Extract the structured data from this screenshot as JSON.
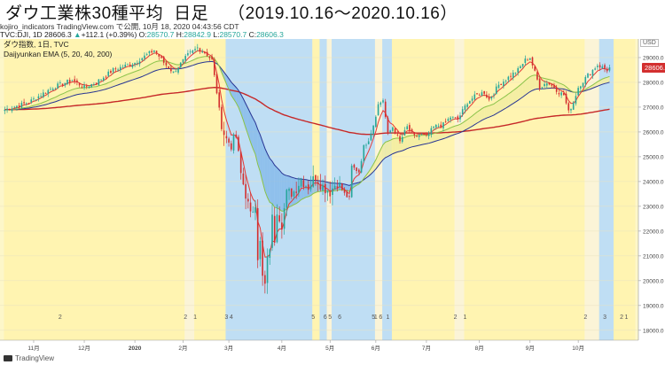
{
  "header": {
    "title": "ダウ工業株30種平均",
    "subtitle": "日足",
    "range": "（2019.10.16～2020.10.16）"
  },
  "meta": "kojiro_indicators TradingView.com で公開, 10月 18, 2020 04:43:56 CDT",
  "ohlc": {
    "prefix": "TVC:DJI, 1D 28606.3",
    "change": "+112.1 (+0.39%)",
    "o_label": "O:",
    "o": "28570.7",
    "h_label": "H:",
    "h": "28842.9",
    "l_label": "L:",
    "l": "28570.7",
    "c_label": "C:",
    "c": "28606.3"
  },
  "legend": {
    "line1": "ダウ指数, 1日, TVC",
    "line2": "Daijyunkan EMA (5, 20, 40, 200)"
  },
  "currency": "USD",
  "last_price": "28606.3",
  "footer": "TradingView",
  "colors": {
    "bull": "#26a69a",
    "bear": "#d32f2f",
    "ema5": "#e53935",
    "ema20": "#8bc34a",
    "ema40": "#283593",
    "ema200": "#c62828",
    "band_yellow": "#fff3b0",
    "band_blue": "#bcdcf7",
    "fill_yellow": "#f3eda2",
    "fill_blue": "#7fb6ea",
    "bg": "#fdf7c9"
  },
  "chart_data": {
    "type": "candlestick",
    "title": "ダウ工業株30種平均 日足 (2019.10.16～2020.10.16)",
    "y_axis": {
      "ticks": [
        18000,
        19000,
        20000,
        21000,
        22000,
        23000,
        24000,
        25000,
        26000,
        27000,
        28000,
        29000
      ],
      "ylim": [
        17600,
        29750
      ]
    },
    "x_labels": [
      "11月",
      "12月",
      "2020",
      "2月",
      "3月",
      "4月",
      "5月",
      "6月",
      "7月",
      "8月",
      "9月",
      "10月"
    ],
    "x_label_index": [
      12,
      33,
      54,
      74,
      93,
      115,
      135,
      154,
      175,
      197,
      218,
      238
    ],
    "n_days": 252,
    "close_anchors": [
      [
        0,
        26900
      ],
      [
        10,
        27200
      ],
      [
        20,
        27800
      ],
      [
        28,
        28100
      ],
      [
        33,
        27800
      ],
      [
        38,
        28000
      ],
      [
        45,
        28500
      ],
      [
        54,
        28800
      ],
      [
        62,
        29300
      ],
      [
        66,
        28800
      ],
      [
        70,
        28400
      ],
      [
        76,
        29100
      ],
      [
        80,
        29400
      ],
      [
        83,
        29200
      ],
      [
        86,
        28900
      ],
      [
        88,
        27600
      ],
      [
        90,
        26200
      ],
      [
        92,
        25700
      ],
      [
        94,
        25500
      ],
      [
        96,
        25800
      ],
      [
        98,
        24300
      ],
      [
        100,
        23500
      ],
      [
        102,
        22600
      ],
      [
        104,
        23200
      ],
      [
        105,
        21000
      ],
      [
        106,
        21500
      ],
      [
        107,
        20100
      ],
      [
        108,
        19800
      ],
      [
        109,
        20800
      ],
      [
        110,
        21400
      ],
      [
        111,
        22500
      ],
      [
        112,
        21700
      ],
      [
        113,
        22900
      ],
      [
        115,
        22300
      ],
      [
        117,
        23500
      ],
      [
        120,
        23600
      ],
      [
        123,
        24100
      ],
      [
        126,
        23800
      ],
      [
        129,
        24200
      ],
      [
        132,
        23800
      ],
      [
        135,
        23600
      ],
      [
        138,
        24000
      ],
      [
        141,
        23500
      ],
      [
        143,
        23300
      ],
      [
        144,
        24600
      ],
      [
        147,
        24400
      ],
      [
        149,
        25400
      ],
      [
        151,
        25700
      ],
      [
        153,
        26300
      ],
      [
        155,
        27100
      ],
      [
        157,
        27300
      ],
      [
        159,
        25900
      ],
      [
        161,
        26200
      ],
      [
        164,
        25600
      ],
      [
        167,
        26200
      ],
      [
        170,
        25800
      ],
      [
        173,
        25900
      ],
      [
        175,
        25800
      ],
      [
        178,
        26200
      ],
      [
        182,
        26300
      ],
      [
        185,
        26600
      ],
      [
        188,
        26500
      ],
      [
        192,
        27200
      ],
      [
        196,
        27500
      ],
      [
        199,
        27600
      ],
      [
        201,
        27300
      ],
      [
        205,
        27900
      ],
      [
        209,
        28200
      ],
      [
        213,
        28500
      ],
      [
        216,
        28900
      ],
      [
        218,
        29000
      ],
      [
        220,
        28400
      ],
      [
        222,
        27800
      ],
      [
        225,
        28000
      ],
      [
        228,
        27800
      ],
      [
        230,
        27600
      ],
      [
        232,
        27500
      ],
      [
        234,
        26800
      ],
      [
        236,
        27200
      ],
      [
        238,
        27800
      ],
      [
        242,
        28300
      ],
      [
        246,
        28700
      ],
      [
        250,
        28500
      ],
      [
        251,
        28606
      ]
    ],
    "band_markers": [
      {
        "label": "2",
        "day": 23
      },
      {
        "label": "2",
        "day": 75
      },
      {
        "label": "1",
        "day": 79
      },
      {
        "label": "3",
        "day": 92
      },
      {
        "label": "4",
        "day": 94
      },
      {
        "label": "5",
        "day": 128
      },
      {
        "label": "6",
        "day": 133
      },
      {
        "label": "5",
        "day": 135
      },
      {
        "label": "6",
        "day": 139
      },
      {
        "label": "5",
        "day": 153
      },
      {
        "label": "1",
        "day": 154
      },
      {
        "label": "6",
        "day": 156
      },
      {
        "label": "1",
        "day": 159
      },
      {
        "label": "2",
        "day": 187
      },
      {
        "label": "1",
        "day": 191
      },
      {
        "label": "2",
        "day": 241
      },
      {
        "label": "3",
        "day": 249
      },
      {
        "label": "2",
        "day": 256
      },
      {
        "label": "1",
        "day": 258
      }
    ],
    "regimes": [
      {
        "start": 0,
        "end": 75,
        "kind": "yellow"
      },
      {
        "start": 75,
        "end": 79,
        "kind": "light"
      },
      {
        "start": 79,
        "end": 92,
        "kind": "yellow"
      },
      {
        "start": 92,
        "end": 128,
        "kind": "blue"
      },
      {
        "start": 128,
        "end": 131,
        "kind": "yellow"
      },
      {
        "start": 131,
        "end": 134,
        "kind": "blue"
      },
      {
        "start": 134,
        "end": 136,
        "kind": "light"
      },
      {
        "start": 136,
        "end": 154,
        "kind": "blue"
      },
      {
        "start": 154,
        "end": 157,
        "kind": "light"
      },
      {
        "start": 157,
        "end": 161,
        "kind": "blue"
      },
      {
        "start": 161,
        "end": 187,
        "kind": "yellow"
      },
      {
        "start": 187,
        "end": 191,
        "kind": "light"
      },
      {
        "start": 191,
        "end": 241,
        "kind": "yellow"
      },
      {
        "start": 241,
        "end": 247,
        "kind": "light"
      },
      {
        "start": 247,
        "end": 253,
        "kind": "blue"
      },
      {
        "start": 253,
        "end": 262,
        "kind": "yellow"
      }
    ]
  }
}
